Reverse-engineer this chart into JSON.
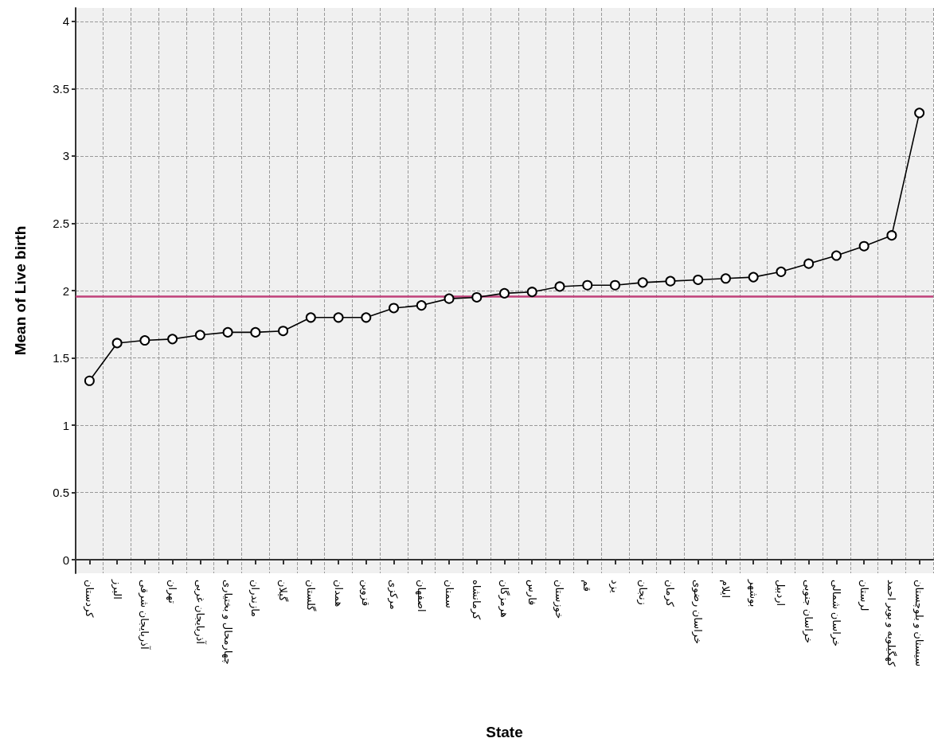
{
  "chart_data": {
    "type": "line",
    "xlabel": "State",
    "ylabel": "Mean of Live birth",
    "categories": [
      "کردستان",
      "البرز",
      "آذربایجان شرقی",
      "تهران",
      "آذربایجان غربی",
      "چهارمحال و بختیاری",
      "مازندران",
      "گیلان",
      "گلستان",
      "همدان",
      "قزوین",
      "مرکزی",
      "اصفهان",
      "سمنان",
      "کرمانشاه",
      "هرمزگان",
      "فارس",
      "خوزستان",
      "قم",
      "یزد",
      "زنجان",
      "کرمان",
      "خراسان رضوی",
      "ایلام",
      "بوشهر",
      "اردبیل",
      "خراسان جنوبی",
      "خراسان شمالی",
      "لرستان",
      "کهگیلویه و بویر احمد",
      "سیستان و بلوچستان"
    ],
    "series": [
      {
        "color": "#000000",
        "values": [
          1.33,
          1.61,
          1.63,
          1.64,
          1.67,
          1.69,
          1.69,
          1.7,
          1.8,
          1.8,
          1.8,
          1.87,
          1.89,
          1.94,
          1.95,
          1.98,
          1.99,
          2.03,
          2.04,
          2.04,
          2.06,
          2.07,
          2.08,
          2.09,
          2.1,
          2.14,
          2.2,
          2.26,
          2.33,
          2.41,
          3.32
        ]
      }
    ],
    "ylim": [
      -0.1,
      4.1
    ],
    "yticks": [
      0,
      0.5,
      1,
      1.5,
      2,
      2.5,
      3,
      3.5,
      4
    ],
    "ref_lines": [
      {
        "axis": "y",
        "value": 1.96,
        "color": "#c0407a"
      }
    ],
    "grid": true,
    "marker": "circle",
    "line_style": "solid"
  }
}
